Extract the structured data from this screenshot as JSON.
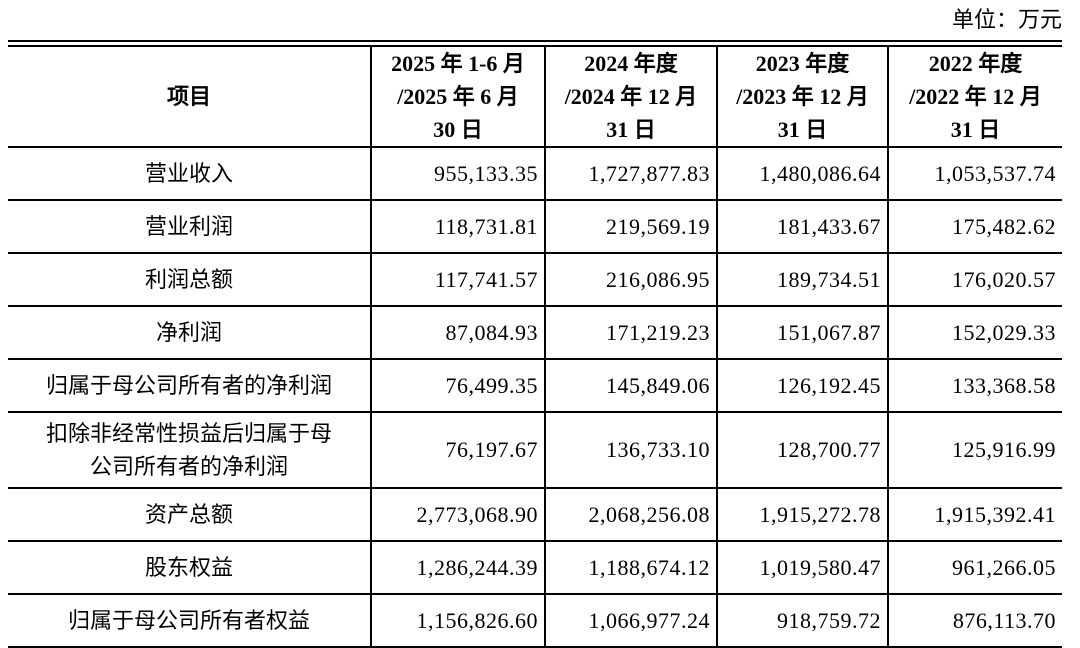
{
  "unit_label": "单位：万元",
  "colors": {
    "text": "#000000",
    "border": "#000000",
    "background": "#ffffff"
  },
  "table": {
    "header": {
      "item_label": "项目",
      "period_columns": [
        {
          "lines": [
            "2025 年 1-6 月",
            "/2025 年 6 月",
            "30 日"
          ]
        },
        {
          "lines": [
            "2024 年度",
            "/2024 年 12 月",
            "31 日"
          ]
        },
        {
          "lines": [
            "2023 年度",
            "/2023 年 12 月",
            "31 日"
          ]
        },
        {
          "lines": [
            "2022 年度",
            "/2022 年 12 月",
            "31 日"
          ]
        }
      ]
    },
    "rows": [
      {
        "label": "营业收入",
        "values": [
          "955,133.35",
          "1,727,877.83",
          "1,480,086.64",
          "1,053,537.74"
        ]
      },
      {
        "label": "营业利润",
        "values": [
          "118,731.81",
          "219,569.19",
          "181,433.67",
          "175,482.62"
        ]
      },
      {
        "label": "利润总额",
        "values": [
          "117,741.57",
          "216,086.95",
          "189,734.51",
          "176,020.57"
        ]
      },
      {
        "label": "净利润",
        "values": [
          "87,084.93",
          "171,219.23",
          "151,067.87",
          "152,029.33"
        ]
      },
      {
        "label": "归属于母公司所有者的净利润",
        "values": [
          "76,499.35",
          "145,849.06",
          "126,192.45",
          "133,368.58"
        ]
      },
      {
        "label": "扣除非经常性损益后归属于母\n公司所有者的净利润",
        "values": [
          "76,197.67",
          "136,733.10",
          "128,700.77",
          "125,916.99"
        ]
      },
      {
        "label": "资产总额",
        "values": [
          "2,773,068.90",
          "2,068,256.08",
          "1,915,272.78",
          "1,915,392.41"
        ]
      },
      {
        "label": "股东权益",
        "values": [
          "1,286,244.39",
          "1,188,674.12",
          "1,019,580.47",
          "961,266.05"
        ]
      },
      {
        "label": "归属于母公司所有者权益",
        "values": [
          "1,156,826.60",
          "1,066,977.24",
          "918,759.72",
          "876,113.70"
        ]
      }
    ]
  }
}
